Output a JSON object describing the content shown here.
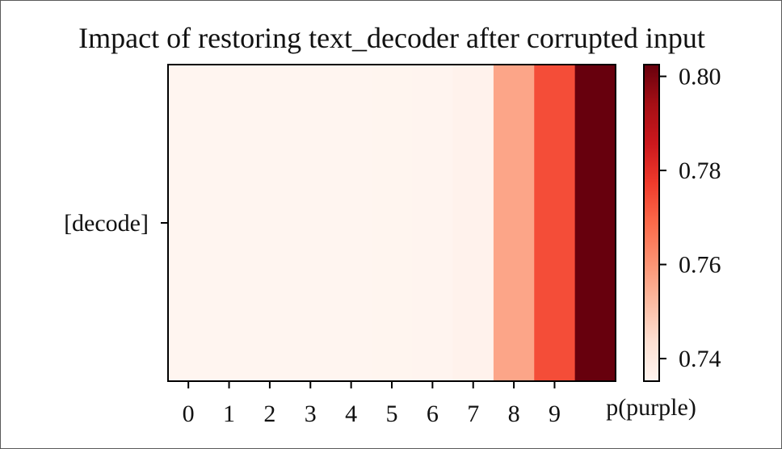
{
  "chart_data": {
    "type": "heatmap",
    "title": "Impact of restoring text_decoder after corrupted input",
    "y_categories": [
      "[decode]"
    ],
    "x_tick_labels": [
      "0",
      "1",
      "2",
      "3",
      "4",
      "5",
      "6",
      "7",
      "8",
      "9"
    ],
    "x_extra_label": "p(purple)",
    "values": [
      [
        0.7353,
        0.7353,
        0.7352,
        0.7352,
        0.7353,
        0.7354,
        0.7356,
        0.7364,
        0.7565,
        0.774,
        0.8025
      ]
    ],
    "colorbar": {
      "vmin": 0.7352,
      "vmax": 0.8025,
      "ticks": [
        0.74,
        0.76,
        0.78,
        0.8
      ],
      "tick_labels": [
        "0.74",
        "0.76",
        "0.78",
        "0.80"
      ],
      "colormap": "Reds",
      "colors": [
        "#fff5f0",
        "#fee0d2",
        "#fcbba1",
        "#fc9272",
        "#fb6a4a",
        "#ef3b2c",
        "#cb181d",
        "#a50f15",
        "#67000d"
      ]
    }
  }
}
